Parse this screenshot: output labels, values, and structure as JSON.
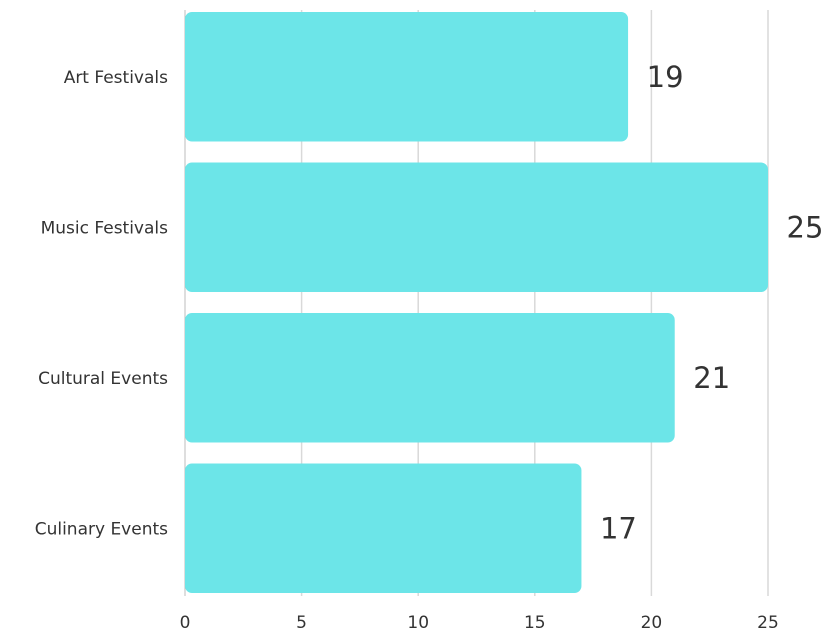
{
  "chart_data": {
    "type": "bar",
    "orientation": "horizontal",
    "categories": [
      "Art Festivals",
      "Music Festivals",
      "Cultural Events",
      "Culinary Events"
    ],
    "values": [
      19,
      25,
      21,
      17
    ],
    "xlim": [
      0,
      25
    ],
    "xticks": [
      0,
      5,
      10,
      15,
      20,
      25
    ],
    "grid": "vertical",
    "data_labels": true,
    "colors": {
      "bar": "#6ce5e8",
      "grid": "#d9d9d9",
      "text": "#333333"
    }
  }
}
